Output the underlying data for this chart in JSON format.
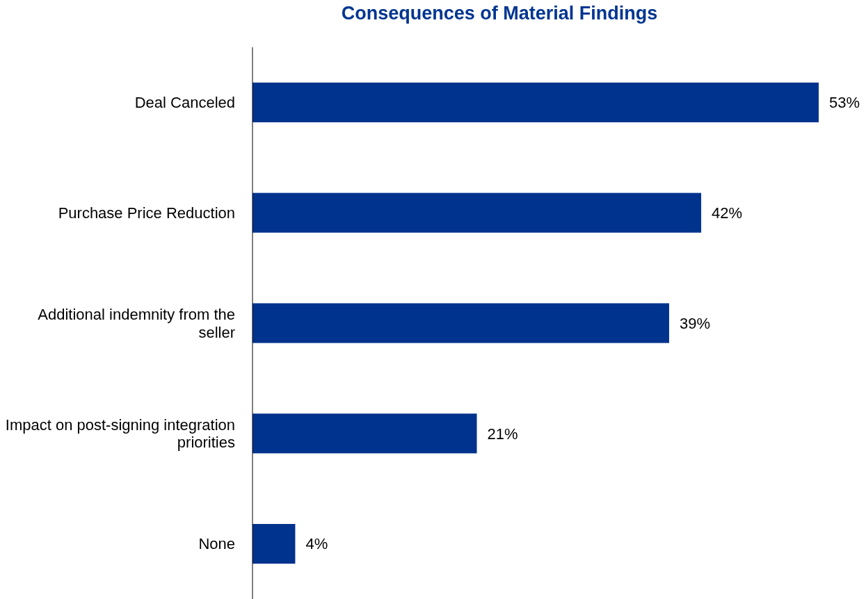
{
  "chart_data": {
    "type": "bar",
    "orientation": "horizontal",
    "title": "Consequences of Material Findings",
    "categories": [
      "Deal Canceled",
      "Purchase Price Reduction",
      "Additional indemnity from the seller",
      "Impact on post-signing integration priorities",
      "None"
    ],
    "values": [
      53,
      42,
      39,
      21,
      4
    ],
    "color": "#00338d",
    "value_labels": [
      "53%",
      "42%",
      "39%",
      "21%",
      "4%"
    ]
  }
}
